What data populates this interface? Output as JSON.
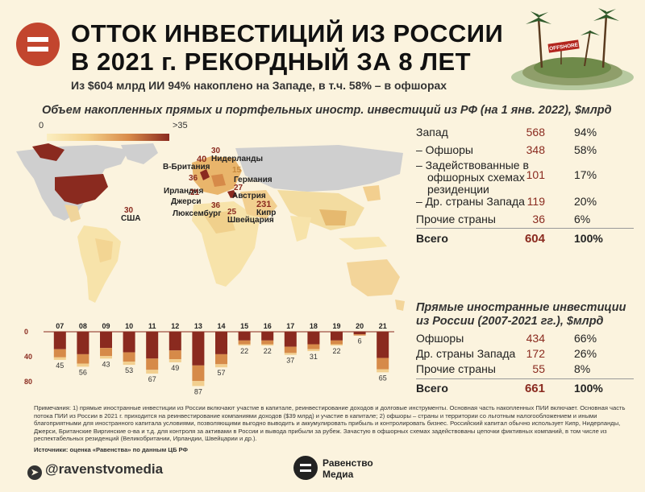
{
  "header": {
    "title_line1": "ОТТОК ИНВЕСТИЦИЙ ИЗ РОССИИ",
    "title_line2": "В 2021 г. РЕКОРДНЫЙ ЗА 8 ЛЕТ",
    "subtitle": "Из $604 млрд ИИ 94% накоплено на Западе, в т.ч. 58% – в офшорах",
    "island_sign": "OFFSHORE"
  },
  "map_section": {
    "title": "Объем накопленных прямых и портфельных иностр. инвестиций из РФ (на 1 янв. 2022), $млрд",
    "scale_min": "0",
    "scale_max": ">35",
    "labels": [
      {
        "name": "Нидерланды",
        "value": "30"
      },
      {
        "name": "В-Британия",
        "value": "40"
      },
      {
        "name": "Ирландия",
        "value": "36"
      },
      {
        "name": "Германия",
        "value": "15"
      },
      {
        "name": "Австрия",
        "value": "27"
      },
      {
        "name": "Джерси",
        "value": "21"
      },
      {
        "name": "Люксембург",
        "value": "36"
      },
      {
        "name": "Кипр",
        "value": "231"
      },
      {
        "name": "Швейцария",
        "value": "25"
      },
      {
        "name": "США",
        "value": "30"
      }
    ]
  },
  "accum_table": {
    "rows": [
      {
        "label": "Запад",
        "value": "568",
        "pct": "94%"
      },
      {
        "label": "– Офшоры",
        "value": "348",
        "pct": "58%"
      },
      {
        "label": "– Задействованные в",
        "label2": "офшорных схемах",
        "label3": "резиденции",
        "value": "101",
        "pct": "17%"
      },
      {
        "label": "– Др. страны Запада",
        "value": "119",
        "pct": "20%"
      },
      {
        "label": "Прочие страны",
        "value": "36",
        "pct": "6%"
      }
    ],
    "total": {
      "label": "Всего",
      "value": "604",
      "pct": "100%"
    }
  },
  "fdi_section": {
    "title_line1": "Прямые иностранные инвестиции",
    "title_line2": "из России (2007-2021 гг.), $млрд",
    "rows": [
      {
        "label": "Офшоры",
        "value": "434",
        "pct": "66%"
      },
      {
        "label": "Др. страны Запада",
        "value": "172",
        "pct": "26%"
      },
      {
        "label": "Прочие страны",
        "value": "55",
        "pct": "8%"
      }
    ],
    "total": {
      "label": "Всего",
      "value": "661",
      "pct": "100%"
    }
  },
  "chart_data": {
    "type": "bar",
    "categories": [
      "07",
      "08",
      "09",
      "10",
      "11",
      "12",
      "13",
      "14",
      "15",
      "16",
      "17",
      "18",
      "19",
      "20",
      "21"
    ],
    "ylim": [
      0,
      80
    ],
    "yticks": [
      "0",
      "40",
      "80"
    ],
    "totals": [
      45,
      56,
      43,
      53,
      67,
      49,
      87,
      57,
      22,
      22,
      37,
      31,
      22,
      6,
      65
    ],
    "series": [
      {
        "values": [
          28,
          36,
          26,
          33,
          43,
          30,
          54,
          36,
          14,
          14,
          24,
          20,
          14,
          4,
          42
        ]
      },
      {
        "values": [
          13,
          15,
          13,
          15,
          18,
          14,
          25,
          16,
          6,
          6,
          10,
          8,
          6,
          2,
          18
        ]
      },
      {
        "values": [
          4,
          5,
          4,
          5,
          6,
          5,
          8,
          5,
          2,
          2,
          3,
          3,
          2,
          0,
          5
        ]
      }
    ],
    "colors": [
      "#8a2a1f",
      "#d68a49",
      "#f2cf8f"
    ]
  },
  "notes": {
    "text1": "Примечания: 1) прямые иностранные инвестиции из России включают участие в капитале, реинвестирование доходов и долговые инструменты. Основная часть накопленных ПИИ включает. Основная часть потока ПИИ из России в 2021 г. приходится на реинвестирование компаниями доходов ($39 млрд) и участие в капитале; 2) офшоры – страны и территории со льготным налогообложением и иными благоприятными для иностранного капитала условиями, позволяющими выгодно выводить и аккумулировать прибыль и контролировать бизнес. Российский капитал обычно использует Кипр, Нидерланды, Джерси, Британские Виргинские о-ва и т.д. для контроля за активами в России и вывода прибыли за рубеж. Зачастую в офшорных схемах задействованы цепочки фиктивных компаний, в том числе из респектабельных резиденций (Великобритании, Ирландии, Швейцарии и др.).",
    "sources": "Источники: оценка «Равенства» по данным ЦБ РФ"
  },
  "footer": {
    "handle": "@ravenstvomedia",
    "brand_line1": "Равенство",
    "brand_line2": "Медиа"
  }
}
